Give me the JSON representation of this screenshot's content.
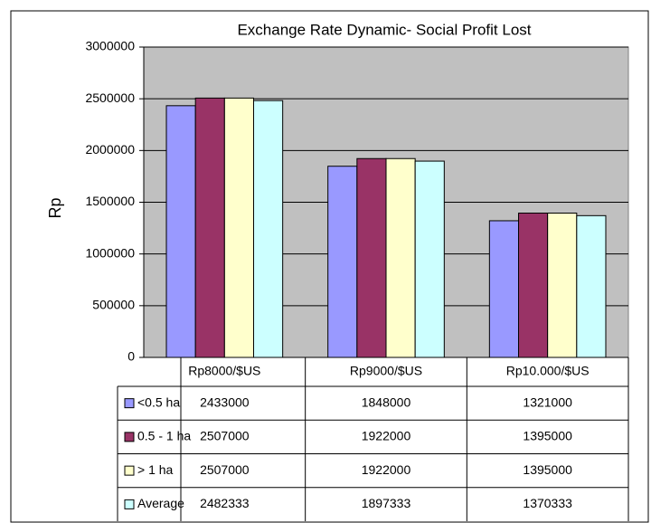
{
  "chart_data": {
    "type": "bar",
    "title": "Exchange Rate Dynamic- Social Profit Lost",
    "ylabel": "Rp",
    "categories": [
      "Rp8000/$US",
      "Rp9000/$US",
      "Rp10.000/$US"
    ],
    "series": [
      {
        "name": "<0.5 ha",
        "color": "#9999ff",
        "values": [
          2433000,
          1848000,
          1321000
        ]
      },
      {
        "name": "0.5 - 1 ha",
        "color": "#993366",
        "values": [
          2507000,
          1922000,
          1395000
        ]
      },
      {
        "name": "> 1 ha",
        "color": "#ffffcc",
        "values": [
          2507000,
          1922000,
          1395000
        ]
      },
      {
        "name": "Average",
        "color": "#ccffff",
        "values": [
          2482333,
          1897333,
          1370333
        ]
      }
    ],
    "ylim": [
      0,
      3000000
    ],
    "yticks": [
      0,
      500000,
      1000000,
      1500000,
      2000000,
      2500000,
      3000000
    ],
    "grid": true
  }
}
